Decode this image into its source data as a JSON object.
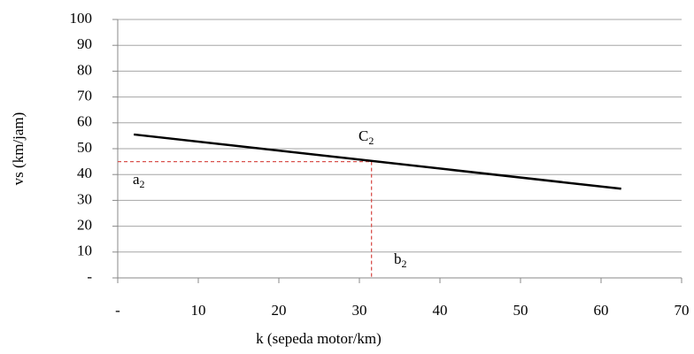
{
  "chart_data": {
    "type": "line",
    "x_label": "k (sepeda motor/km)",
    "y_label": "vs  (km/jam)",
    "x": [
      2,
      62.5
    ],
    "series": [
      {
        "name": "vs",
        "color": "#000000",
        "values": [
          55.5,
          34.5
        ]
      }
    ],
    "xlim": [
      0,
      70
    ],
    "xticks": [
      {
        "value": 0,
        "label": "-"
      },
      10,
      20,
      30,
      40,
      50,
      60,
      70
    ],
    "ylim": [
      0,
      100
    ],
    "yticks": [
      {
        "value": 0,
        "label": "-"
      },
      10,
      20,
      30,
      40,
      50,
      60,
      70,
      80,
      90,
      100
    ],
    "grid": true,
    "reference_point": {
      "x": 31.5,
      "y": 45,
      "color": "#d9534f"
    },
    "annotations": [
      {
        "text": "C",
        "subscript": "2"
      },
      {
        "text": "a",
        "subscript": "2"
      },
      {
        "text": "b",
        "subscript": "2"
      }
    ]
  }
}
